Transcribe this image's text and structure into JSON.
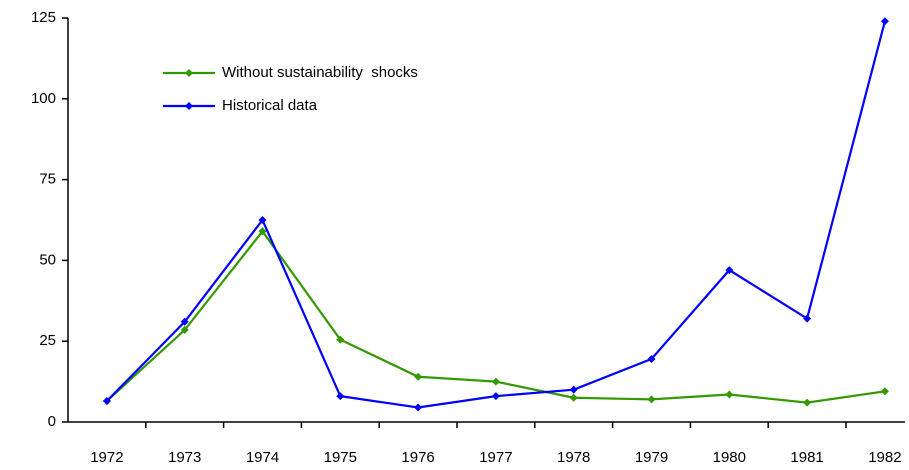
{
  "chart_data": {
    "type": "line",
    "categories": [
      "1972",
      "1973",
      "1974",
      "1975",
      "1976",
      "1977",
      "1978",
      "1979",
      "1980",
      "1981",
      "1982"
    ],
    "series": [
      {
        "name": "Without sustainability  shocks",
        "color": "#339900",
        "values": [
          6.5,
          28.5,
          59,
          25.5,
          14,
          12.5,
          7.5,
          7,
          8.5,
          6,
          9.5
        ]
      },
      {
        "name": "Historical data",
        "color": "#0000ff",
        "values": [
          6.5,
          31,
          62.5,
          8,
          4.5,
          8,
          10,
          19.5,
          47,
          32,
          124
        ]
      }
    ],
    "ylim": [
      0,
      125
    ],
    "yticks": [
      0,
      25,
      50,
      75,
      100,
      125
    ],
    "grid": false,
    "legend": "upper-left"
  }
}
